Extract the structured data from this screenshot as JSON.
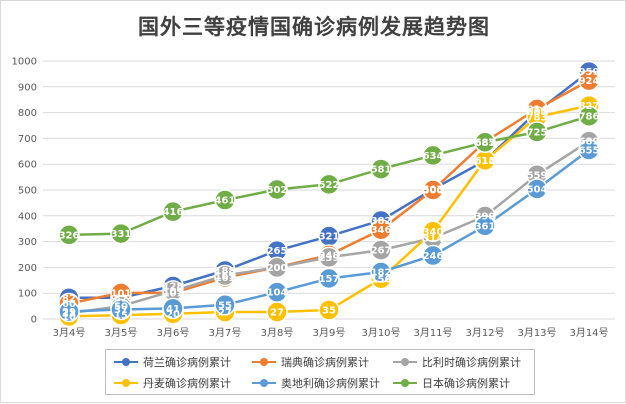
{
  "chart_data": {
    "type": "line",
    "title": "国外三等疫情国确诊病例发展趋势图",
    "categories": [
      "3月4号",
      "3月5号",
      "3月6号",
      "3月7号",
      "3月8号",
      "3月9号",
      "3月10号",
      "3月11号",
      "3月12号",
      "3月13号",
      "3月14号"
    ],
    "ylim": [
      0,
      1000
    ],
    "yticks": [
      0,
      100,
      200,
      300,
      400,
      500,
      600,
      700,
      800,
      900,
      1000
    ],
    "grid": true,
    "legend_position": "bottom",
    "series": [
      {
        "name": "荷兰确诊病例累计",
        "color": "#4472c4",
        "values": [
          82,
          82,
          128,
          188,
          265,
          321,
          382,
          503,
          614,
          804,
          959
        ]
      },
      {
        "name": "瑞典确诊病例累计",
        "color": "#ed7d31",
        "values": [
          60,
          101,
          101,
          161,
          200,
          248,
          346,
          500,
          687,
          814,
          924
        ]
      },
      {
        "name": "比利时确诊病例累计",
        "color": "#a5a5a5",
        "values": [
          23,
          50,
          109,
          169,
          200,
          239,
          267,
          314,
          399,
          559,
          689
        ]
      },
      {
        "name": "丹麦确诊病例累计",
        "color": "#ffc000",
        "values": [
          10,
          15,
          20,
          27,
          27,
          35,
          156,
          340,
          615,
          783,
          827
        ]
      },
      {
        "name": "奥地利确诊病例累计",
        "color": "#5b9bd5",
        "values": [
          29,
          37,
          41,
          55,
          104,
          157,
          182,
          246,
          361,
          504,
          655
        ]
      },
      {
        "name": "日本确诊病例累计",
        "color": "#70ad47",
        "values": [
          326,
          331,
          416,
          461,
          502,
          522,
          581,
          634,
          685,
          725,
          786
        ]
      }
    ]
  }
}
